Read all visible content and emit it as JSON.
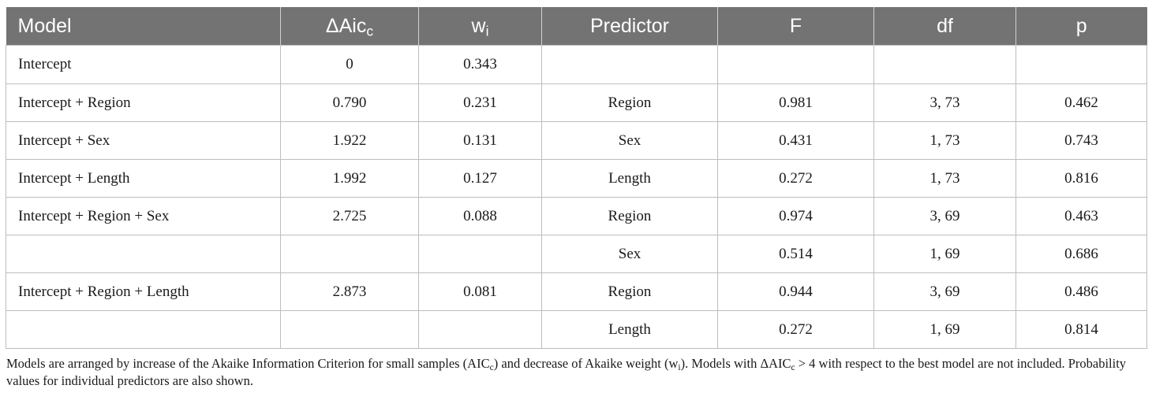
{
  "table": {
    "headers": {
      "model": "Model",
      "delta_aic_main": "ΔAic",
      "delta_aic_sub": "c",
      "w_main": "w",
      "w_sub": "i",
      "predictor": "Predictor",
      "F": "F",
      "df": "df",
      "p": "p"
    },
    "rows": [
      {
        "model": "Intercept",
        "delta_aic": "0",
        "w": "0.343",
        "predictor": "",
        "F": "",
        "df": "",
        "p": ""
      },
      {
        "model": "Intercept + Region",
        "delta_aic": "0.790",
        "w": "0.231",
        "predictor": "Region",
        "F": "0.981",
        "df": "3, 73",
        "p": "0.462"
      },
      {
        "model": "Intercept + Sex",
        "delta_aic": "1.922",
        "w": "0.131",
        "predictor": "Sex",
        "F": "0.431",
        "df": "1, 73",
        "p": "0.743"
      },
      {
        "model": "Intercept + Length",
        "delta_aic": "1.992",
        "w": "0.127",
        "predictor": "Length",
        "F": "0.272",
        "df": "1, 73",
        "p": "0.816"
      },
      {
        "model": "Intercept + Region + Sex",
        "delta_aic": "2.725",
        "w": "0.088",
        "predictor": "Region",
        "F": "0.974",
        "df": "3, 69",
        "p": "0.463"
      },
      {
        "model": "",
        "delta_aic": "",
        "w": "",
        "predictor": "Sex",
        "F": "0.514",
        "df": "1, 69",
        "p": "0.686"
      },
      {
        "model": "Intercept + Region + Length",
        "delta_aic": "2.873",
        "w": "0.081",
        "predictor": "Region",
        "F": "0.944",
        "df": "3, 69",
        "p": "0.486"
      },
      {
        "model": "",
        "delta_aic": "",
        "w": "",
        "predictor": "Length",
        "F": "0.272",
        "df": "1, 69",
        "p": "0.814"
      }
    ]
  },
  "note": {
    "p1": "Models are arranged by increase of the Akaike Information Criterion for small samples (AIC",
    "s1": "c",
    "p2": ") and decrease of Akaike weight (w",
    "s2": "i",
    "p3": "). Models with ΔAIC",
    "s3": "c",
    "p4": " > 4 with respect to the best model are not included. Probability values for individual predictors are also shown."
  }
}
